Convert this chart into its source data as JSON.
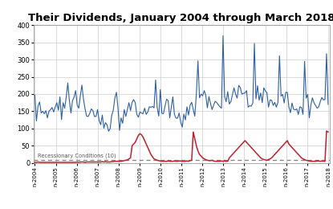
{
  "title": "Their Dividends, January 2004 through March 2018",
  "title_fontsize": 9.5,
  "background_color": "#ffffff",
  "blue_color": "#2E5FA3",
  "red_color": "#C0202A",
  "dashed_line_value": 10,
  "dashed_color": "#808080",
  "annotation_text": "Recessionary Conditions (10)",
  "ylim": [
    0,
    400
  ],
  "yticks": [
    0,
    50,
    100,
    150,
    200,
    250,
    300,
    350,
    400
  ],
  "x_labels": [
    "n-2004",
    "n-2005",
    "n-2006",
    "n-2007",
    "n-2008",
    "n-2009",
    "n-2010",
    "n-2011",
    "n-2012",
    "n-2013",
    "n-2014",
    "n-2015",
    "n-2016",
    "n-2017",
    "n-2018"
  ],
  "blue_values": [
    197,
    122,
    165,
    177,
    145,
    150,
    143,
    152,
    131,
    150,
    155,
    161,
    148,
    163,
    175,
    153,
    192,
    126,
    175,
    159,
    191,
    232,
    182,
    145,
    181,
    191,
    210,
    168,
    159,
    195,
    226,
    185,
    157,
    136,
    135,
    144,
    157,
    152,
    135,
    135,
    155,
    123,
    111,
    139,
    101,
    117,
    111,
    92,
    100,
    138,
    153,
    188,
    205,
    160,
    95,
    131,
    115,
    155,
    135,
    155,
    175,
    152,
    176,
    184,
    175,
    141,
    133,
    148,
    145,
    143,
    159,
    141,
    148,
    163,
    162,
    164,
    160,
    241,
    161,
    136,
    213,
    144,
    143,
    165,
    185,
    181,
    131,
    162,
    192,
    141,
    130,
    130,
    145,
    118,
    104,
    142,
    125,
    163,
    139,
    168,
    176,
    155,
    136,
    201,
    296,
    189,
    200,
    195,
    210,
    196,
    160,
    193,
    173,
    155,
    168,
    179,
    175,
    169,
    163,
    159,
    369,
    193,
    178,
    207,
    171,
    178,
    198,
    218,
    200,
    188,
    225,
    219,
    200,
    202,
    203,
    210,
    162,
    166,
    165,
    174,
    347,
    186,
    224,
    182,
    203,
    175,
    218,
    209,
    204,
    162,
    183,
    182,
    167,
    176,
    162,
    176,
    311,
    194,
    199,
    174,
    205,
    205,
    162,
    146,
    174,
    156,
    154,
    157,
    141,
    163,
    161,
    141,
    295,
    188,
    199,
    131,
    168,
    189,
    175,
    167,
    159,
    163,
    178,
    190,
    183,
    184,
    317,
    170
  ],
  "red_values": [
    2,
    2,
    3,
    2,
    2,
    2,
    2,
    2,
    2,
    2,
    2,
    2,
    2,
    2,
    2,
    2,
    2,
    2,
    2,
    2,
    2,
    2,
    2,
    2,
    2,
    2,
    2,
    3,
    2,
    3,
    3,
    3,
    2,
    3,
    3,
    3,
    3,
    3,
    3,
    3,
    3,
    3,
    3,
    4,
    3,
    4,
    3,
    3,
    3,
    4,
    4,
    5,
    5,
    5,
    5,
    5,
    6,
    7,
    8,
    9,
    12,
    15,
    50,
    55,
    60,
    70,
    80,
    85,
    82,
    75,
    65,
    55,
    45,
    35,
    25,
    18,
    12,
    10,
    8,
    7,
    6,
    5,
    5,
    5,
    5,
    6,
    5,
    5,
    5,
    6,
    5,
    5,
    6,
    6,
    5,
    5,
    5,
    6,
    5,
    7,
    8,
    90,
    70,
    50,
    35,
    25,
    20,
    15,
    12,
    10,
    8,
    7,
    7,
    8,
    6,
    5,
    5,
    5,
    5,
    6,
    5,
    6,
    5,
    5,
    15,
    20,
    25,
    30,
    35,
    40,
    45,
    50,
    55,
    60,
    65,
    60,
    55,
    50,
    45,
    40,
    35,
    30,
    25,
    20,
    15,
    12,
    10,
    9,
    8,
    10,
    12,
    15,
    20,
    25,
    30,
    35,
    40,
    45,
    50,
    55,
    60,
    65,
    55,
    50,
    45,
    40,
    35,
    30,
    25,
    20,
    15,
    12,
    10,
    8,
    7,
    6,
    5,
    5,
    5,
    5,
    6,
    6,
    5,
    6,
    5,
    5,
    93,
    90
  ]
}
